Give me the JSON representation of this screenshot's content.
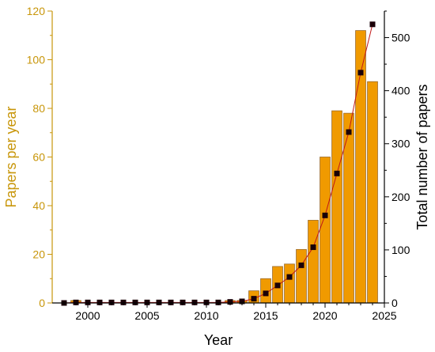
{
  "chart_data": {
    "type": "bar",
    "xlabel": "Year",
    "ylabel_left": "Papers per year",
    "ylabel_right": "Total number of papers",
    "xlim": [
      1997,
      2025
    ],
    "xticks": [
      2000,
      2005,
      2010,
      2015,
      2020,
      2025
    ],
    "ylim_left": [
      0,
      120
    ],
    "yticks_left": [
      0,
      20,
      40,
      60,
      80,
      100,
      120
    ],
    "ylim_right": [
      0,
      550
    ],
    "yticks_right": [
      0,
      100,
      200,
      300,
      400,
      500
    ],
    "grid": false,
    "colors": {
      "bar_fill": "#f09a00",
      "bar_stroke": "#9a6a2a",
      "left_axis": "#c8960a",
      "marker": "#1a0008",
      "line": "#c01818"
    },
    "series": [
      {
        "axis": "left",
        "kind": "bar",
        "x": [
          1998,
          1999,
          2000,
          2001,
          2002,
          2003,
          2004,
          2005,
          2006,
          2007,
          2008,
          2009,
          2010,
          2011,
          2012,
          2013,
          2014,
          2015,
          2016,
          2017,
          2018,
          2019,
          2020,
          2021,
          2022,
          2023,
          2024
        ],
        "values": [
          0,
          1,
          0,
          0,
          0,
          0,
          0,
          0,
          0,
          0,
          0,
          0,
          0,
          0,
          1,
          1,
          5,
          10,
          15,
          16,
          22,
          34,
          60,
          79,
          78,
          112,
          91
        ]
      },
      {
        "axis": "right",
        "kind": "line",
        "marker": "square",
        "x": [
          1998,
          1999,
          2000,
          2001,
          2002,
          2003,
          2004,
          2005,
          2006,
          2007,
          2008,
          2009,
          2010,
          2011,
          2012,
          2013,
          2014,
          2015,
          2016,
          2017,
          2018,
          2019,
          2020,
          2021,
          2022,
          2023,
          2024
        ],
        "values": [
          0,
          1,
          1,
          1,
          1,
          1,
          1,
          1,
          1,
          1,
          1,
          1,
          1,
          1,
          2,
          3,
          8,
          18,
          33,
          49,
          71,
          105,
          165,
          244,
          322,
          434,
          525
        ]
      }
    ]
  }
}
